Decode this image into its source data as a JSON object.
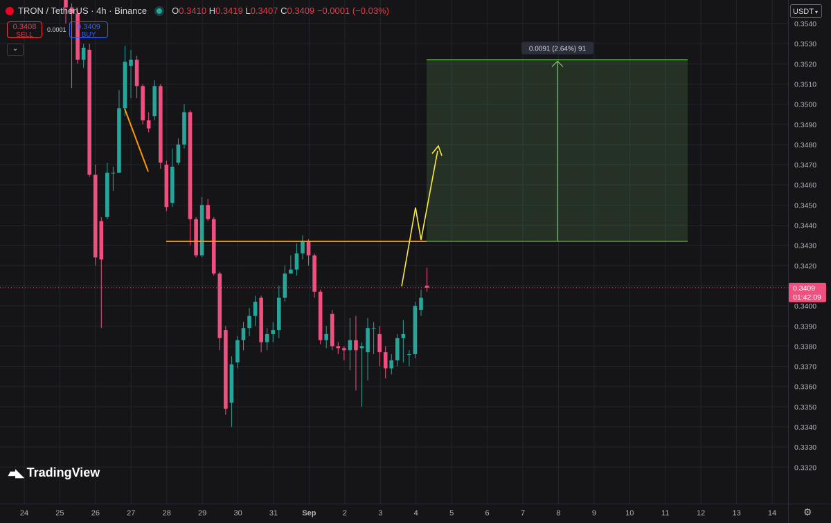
{
  "header": {
    "symbol": "TRON / TetherUS · 4h · Binance",
    "open_label": "O",
    "open": "0.3410",
    "high_label": "H",
    "high": "0.3419",
    "low_label": "L",
    "low": "0.3407",
    "close_label": "C",
    "close": "0.3409",
    "change": "−0.0001 (−0.03%)"
  },
  "trade": {
    "sell_price": "0.3408",
    "sell_label": "SELL",
    "buy_price": "0.3409",
    "buy_label": "BUY",
    "spread": "0.0001"
  },
  "currency": "USDT",
  "brand": "TradingView",
  "current_price_label": {
    "price": "0.3409",
    "countdown": "01:42:09"
  },
  "colors": {
    "up": "#26a69a",
    "down": "#ef5080",
    "orange": "#ff9800",
    "yellow": "#ffeb3b",
    "target_green": "#7ec86a"
  },
  "chart_data": {
    "type": "candlestick",
    "timeframe": "4h",
    "ylim": [
      0.3314,
      0.3547
    ],
    "y_ticks": [
      "0.3320",
      "0.3330",
      "0.3340",
      "0.3350",
      "0.3360",
      "0.3370",
      "0.3380",
      "0.3390",
      "0.3400",
      "0.3410",
      "0.3420",
      "0.3430",
      "0.3440",
      "0.3450",
      "0.3460",
      "0.3470",
      "0.3480",
      "0.3490",
      "0.3500",
      "0.3510",
      "0.3520",
      "0.3530",
      "0.3540"
    ],
    "x_ticks": [
      "24",
      "25",
      "26",
      "27",
      "28",
      "29",
      "30",
      "31",
      "Sep",
      "2",
      "3",
      "4",
      "5",
      "6",
      "7",
      "8",
      "9",
      "10",
      "11",
      "12",
      "13",
      "14"
    ],
    "candles": [
      [
        0.3552,
        0.3548,
        0.3556,
        0.354
      ],
      [
        0.3548,
        0.3545,
        0.355,
        0.3508
      ],
      [
        0.3545,
        0.3522,
        0.3547,
        0.352
      ],
      [
        0.3522,
        0.3528,
        0.353,
        0.3518
      ],
      [
        0.3527,
        0.3465,
        0.353,
        0.3464
      ],
      [
        0.3465,
        0.3424,
        0.347,
        0.342
      ],
      [
        0.3442,
        0.3423,
        0.3444,
        0.3389
      ],
      [
        0.3444,
        0.3466,
        0.3471,
        0.3443
      ],
      [
        0.3466,
        0.3466,
        0.3469,
        0.3457
      ],
      [
        0.3466,
        0.3498,
        0.3507,
        0.3466
      ],
      [
        0.3498,
        0.3521,
        0.3529,
        0.3494
      ],
      [
        0.3519,
        0.3522,
        0.3527,
        0.3503
      ],
      [
        0.3522,
        0.3509,
        0.3524,
        0.3503
      ],
      [
        0.3509,
        0.3492,
        0.351,
        0.349
      ],
      [
        0.3492,
        0.3488,
        0.3496,
        0.3486
      ],
      [
        0.3494,
        0.3509,
        0.3512,
        0.3492
      ],
      [
        0.3509,
        0.3471,
        0.351,
        0.3468
      ],
      [
        0.347,
        0.3449,
        0.3472,
        0.3447
      ],
      [
        0.3451,
        0.3469,
        0.3478,
        0.3449
      ],
      [
        0.3471,
        0.348,
        0.3483,
        0.347
      ],
      [
        0.348,
        0.3496,
        0.35,
        0.3478
      ],
      [
        0.3496,
        0.3443,
        0.3497,
        0.343
      ],
      [
        0.3443,
        0.3425,
        0.3444,
        0.3424
      ],
      [
        0.3425,
        0.345,
        0.3454,
        0.3424
      ],
      [
        0.345,
        0.3443,
        0.3453,
        0.3442
      ],
      [
        0.3443,
        0.3416,
        0.3444,
        0.3415
      ],
      [
        0.3416,
        0.3384,
        0.3417,
        0.3378
      ],
      [
        0.3388,
        0.3349,
        0.339,
        0.3346
      ],
      [
        0.3352,
        0.3371,
        0.3375,
        0.334
      ],
      [
        0.3372,
        0.3383,
        0.3385,
        0.3369
      ],
      [
        0.3383,
        0.3389,
        0.3392,
        0.3378
      ],
      [
        0.3389,
        0.3395,
        0.3399,
        0.3385
      ],
      [
        0.3395,
        0.3402,
        0.3405,
        0.339
      ],
      [
        0.3404,
        0.3382,
        0.3405,
        0.3377
      ],
      [
        0.3382,
        0.3386,
        0.3389,
        0.3378
      ],
      [
        0.3386,
        0.3388,
        0.3392,
        0.3382
      ],
      [
        0.3388,
        0.3404,
        0.341,
        0.3384
      ],
      [
        0.3404,
        0.3416,
        0.342,
        0.3402
      ],
      [
        0.3416,
        0.3418,
        0.3425,
        0.3416
      ],
      [
        0.3418,
        0.3426,
        0.3431,
        0.3415
      ],
      [
        0.3426,
        0.3432,
        0.3435,
        0.3423
      ],
      [
        0.3432,
        0.3425,
        0.3433,
        0.342
      ],
      [
        0.3425,
        0.3407,
        0.3426,
        0.3404
      ],
      [
        0.3407,
        0.3383,
        0.3408,
        0.3381
      ],
      [
        0.3383,
        0.3386,
        0.339,
        0.3379
      ],
      [
        0.3396,
        0.338,
        0.3398,
        0.3378
      ],
      [
        0.338,
        0.3379,
        0.3382,
        0.3376
      ],
      [
        0.3379,
        0.3378,
        0.338,
        0.3373
      ],
      [
        0.3378,
        0.3383,
        0.3394,
        0.3368
      ],
      [
        0.3383,
        0.3378,
        0.3395,
        0.3358
      ],
      [
        0.3379,
        0.338,
        0.3382,
        0.335
      ],
      [
        0.3377,
        0.3389,
        0.3394,
        0.3363
      ],
      [
        0.3389,
        0.3389,
        0.3392,
        0.3376
      ],
      [
        0.3386,
        0.3377,
        0.339,
        0.337
      ],
      [
        0.3377,
        0.3369,
        0.338,
        0.3364
      ],
      [
        0.3369,
        0.3373,
        0.3376,
        0.3366
      ],
      [
        0.3373,
        0.3384,
        0.3386,
        0.337
      ],
      [
        0.3384,
        0.3386,
        0.3393,
        0.3372
      ],
      [
        0.3376,
        0.3376,
        0.3378,
        0.337
      ],
      [
        0.3376,
        0.34,
        0.3402,
        0.3374
      ],
      [
        0.3398,
        0.3404,
        0.3408,
        0.3395
      ],
      [
        0.341,
        0.3409,
        0.3419,
        0.3407
      ]
    ],
    "annotations": {
      "resistance_level": 0.3432,
      "target_level": 0.3522,
      "target_label": "0.0091 (2.64%) 91",
      "current_price": 0.3409
    }
  }
}
